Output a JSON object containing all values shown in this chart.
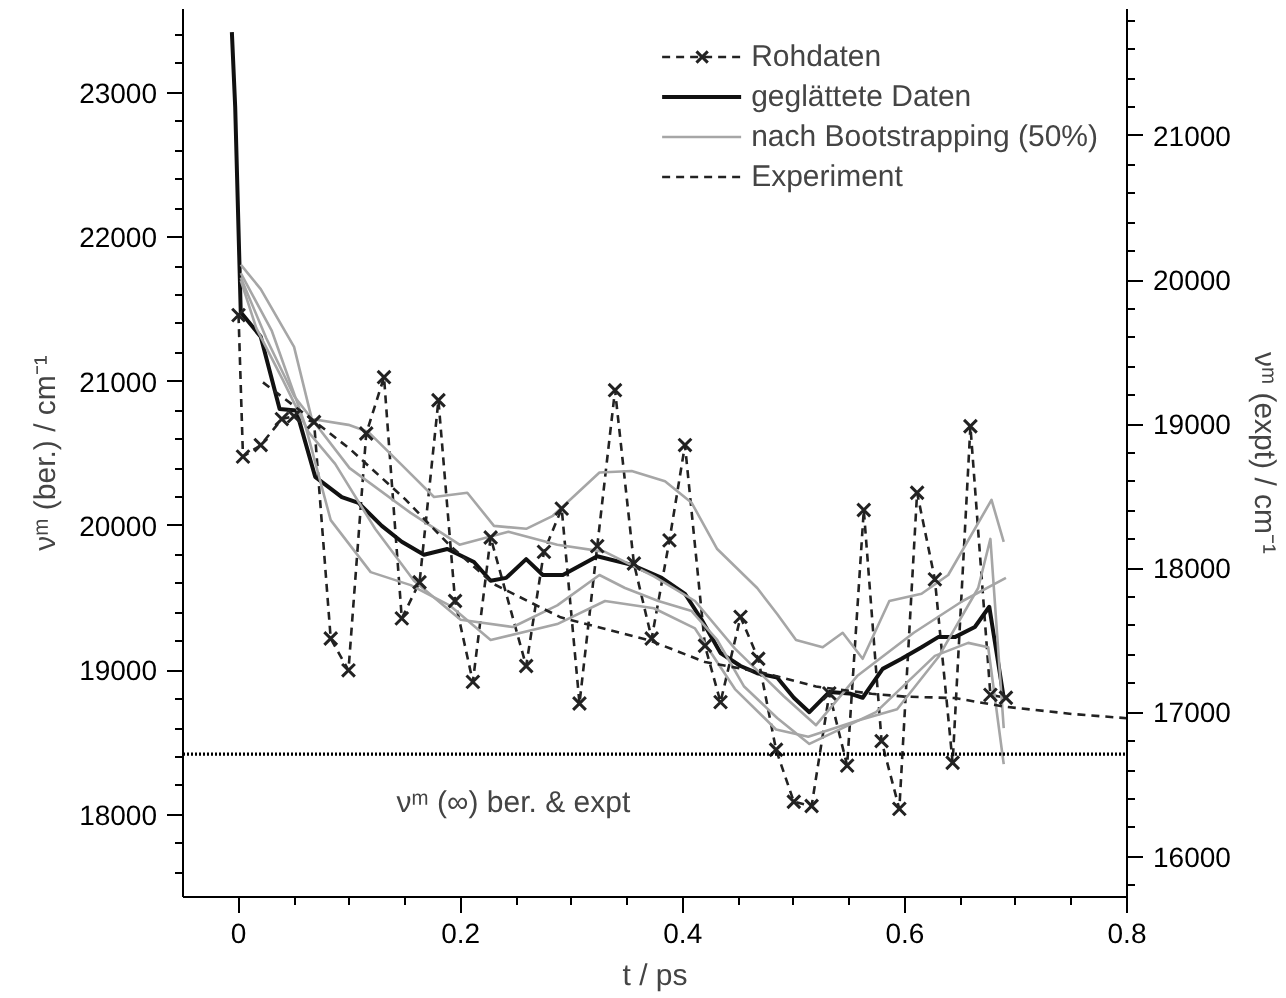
{
  "chart_data": {
    "type": "line",
    "xlabel": "t / ps",
    "ylabel": "νᵐ (ber.) / cm⁻¹",
    "y2label": "νᵐ (expt) / cm⁻¹",
    "xlim": [
      -0.05,
      0.8
    ],
    "xticks": [
      0,
      {
        "value": 0.05,
        "label": null
      },
      {
        "value": 0.1,
        "label": null
      },
      {
        "value": 0.15,
        "label": null
      },
      {
        "value": 0.2,
        "label": "0.2"
      },
      {
        "value": 0.25,
        "label": null
      },
      {
        "value": 0.3,
        "label": null
      },
      {
        "value": 0.35,
        "label": null
      },
      {
        "value": 0.4,
        "label": "0.4"
      },
      {
        "value": 0.45,
        "label": null
      },
      {
        "value": 0.5,
        "label": null
      },
      {
        "value": 0.55,
        "label": null
      },
      {
        "value": 0.6,
        "label": "0.6"
      },
      {
        "value": 0.65,
        "label": null
      },
      {
        "value": 0.7,
        "label": null
      },
      {
        "value": 0.75,
        "label": null
      },
      {
        "value": 0.8,
        "label": "0.8"
      }
    ],
    "ylim": [
      17430,
      23580
    ],
    "yticks": [
      {
        "value": 17600,
        "label": null
      },
      {
        "value": 17800,
        "label": null
      },
      18000,
      {
        "value": 18200,
        "label": null
      },
      {
        "value": 18400,
        "label": null
      },
      {
        "value": 18600,
        "label": null
      },
      {
        "value": 18800,
        "label": null
      },
      19000,
      {
        "value": 19200,
        "label": null
      },
      {
        "value": 19400,
        "label": null
      },
      {
        "value": 19600,
        "label": null
      },
      {
        "value": 19800,
        "label": null
      },
      20000,
      {
        "value": 20200,
        "label": null
      },
      {
        "value": 20400,
        "label": null
      },
      {
        "value": 20600,
        "label": null
      },
      {
        "value": 20800,
        "label": null
      },
      21000,
      {
        "value": 21200,
        "label": null
      },
      {
        "value": 21400,
        "label": null
      },
      {
        "value": 21600,
        "label": null
      },
      {
        "value": 21800,
        "label": null
      },
      22000,
      {
        "value": 22200,
        "label": null
      },
      {
        "value": 22400,
        "label": null
      },
      {
        "value": 22600,
        "label": null
      },
      {
        "value": 22800,
        "label": null
      },
      23000,
      {
        "value": 23200,
        "label": null
      },
      {
        "value": 23400,
        "label": null
      }
    ],
    "y2lim": [
      15720,
      21880
    ],
    "y2ticks": [
      {
        "value": 15800,
        "label": null
      },
      16000,
      {
        "value": 16200,
        "label": null
      },
      {
        "value": 16400,
        "label": null
      },
      {
        "value": 16600,
        "label": null
      },
      {
        "value": 16800,
        "label": null
      },
      17000,
      {
        "value": 17200,
        "label": null
      },
      {
        "value": 17400,
        "label": null
      },
      {
        "value": 17600,
        "label": null
      },
      {
        "value": 17800,
        "label": null
      },
      18000,
      {
        "value": 18200,
        "label": null
      },
      {
        "value": 18400,
        "label": null
      },
      {
        "value": 18600,
        "label": null
      },
      {
        "value": 18800,
        "label": null
      },
      19000,
      {
        "value": 19200,
        "label": null
      },
      {
        "value": 19400,
        "label": null
      },
      {
        "value": 19600,
        "label": null
      },
      {
        "value": 19800,
        "label": null
      },
      20000,
      {
        "value": 20200,
        "label": null
      },
      {
        "value": 20400,
        "label": null
      },
      {
        "value": 20600,
        "label": null
      },
      {
        "value": 20800,
        "label": null
      },
      21000,
      {
        "value": 21200,
        "label": null
      },
      {
        "value": 21400,
        "label": null
      },
      {
        "value": 21600,
        "label": null
      },
      {
        "value": 21800,
        "label": null
      }
    ],
    "grid": false,
    "legend": "top right",
    "ref_lines": [
      {
        "axis": "y",
        "value": 18420,
        "label": "νᵐ (∞) ber. & expt",
        "color": "#000000",
        "line_style": "dotted"
      }
    ],
    "series": [
      {
        "name": "Rohdaten",
        "color": "#222222",
        "line_style": "dashed",
        "marker": "cross",
        "x": [
          0,
          0.004,
          0.02,
          0.039,
          0.05,
          0.068,
          0.083,
          0.099,
          0.115,
          0.131,
          0.147,
          0.163,
          0.18,
          0.195,
          0.211,
          0.227,
          0.259,
          0.275,
          0.291,
          0.307,
          0.323,
          0.339,
          0.356,
          0.372,
          0.388,
          0.402,
          0.42,
          0.434,
          0.452,
          0.468,
          0.484,
          0.5,
          0.516,
          0.532,
          0.548,
          0.563,
          0.579,
          0.595,
          0.611,
          0.627,
          0.643,
          0.659,
          0.677,
          0.691
        ],
        "values": [
          21460,
          20480,
          20560,
          20740,
          20760,
          20720,
          19220,
          19000,
          20640,
          21030,
          19360,
          19610,
          20870,
          19480,
          18920,
          19920,
          19030,
          19820,
          20120,
          18770,
          19860,
          20940,
          19740,
          19220,
          19900,
          20560,
          19170,
          18780,
          19370,
          19080,
          18450,
          18090,
          18060,
          18840,
          18340,
          20110,
          18510,
          18040,
          20230,
          19630,
          18360,
          20690,
          18830,
          18810
        ]
      },
      {
        "name": "geglättete Daten",
        "color": "#111111",
        "line_style": "solid",
        "x": [
          -0.006,
          -0.003,
          0.002,
          0.02,
          0.037,
          0.052,
          0.069,
          0.093,
          0.108,
          0.129,
          0.147,
          0.167,
          0.188,
          0.212,
          0.227,
          0.241,
          0.259,
          0.274,
          0.292,
          0.323,
          0.354,
          0.381,
          0.402,
          0.417,
          0.434,
          0.452,
          0.467,
          0.485,
          0.5,
          0.514,
          0.532,
          0.55,
          0.562,
          0.58,
          0.597,
          0.615,
          0.63,
          0.645,
          0.663,
          0.676,
          0.689
        ],
        "values": [
          23420,
          22900,
          21480,
          21310,
          20810,
          20800,
          20340,
          20200,
          20160,
          20000,
          19890,
          19800,
          19840,
          19750,
          19620,
          19640,
          19770,
          19660,
          19660,
          19790,
          19730,
          19640,
          19530,
          19350,
          19120,
          19030,
          18980,
          18950,
          18810,
          18710,
          18850,
          18840,
          18810,
          19010,
          19080,
          19160,
          19230,
          19230,
          19300,
          19440,
          18810
        ]
      },
      {
        "name": "nach Bootstrapping (50%)",
        "color": "#a6a6a6",
        "line_style": "solid",
        "x": [
          0.002,
          0.02,
          0.05,
          0.066,
          0.099,
          0.117,
          0.146,
          0.176,
          0.206,
          0.23,
          0.259,
          0.283,
          0.325,
          0.354,
          0.384,
          0.408,
          0.431,
          0.467,
          0.485,
          0.502,
          0.526,
          0.544,
          0.562,
          0.586,
          0.615,
          0.639,
          0.678,
          0.689
        ],
        "values": [
          21810,
          21640,
          21240,
          20740,
          20700,
          20650,
          20430,
          20200,
          20230,
          20000,
          19980,
          20070,
          20370,
          20380,
          20310,
          20160,
          19840,
          19570,
          19390,
          19210,
          19160,
          19260,
          19080,
          19480,
          19530,
          19660,
          20180,
          19890
        ]
      },
      {
        "color": "#a6a6a6",
        "line_style": "solid",
        "x": [
          0.002,
          0.016,
          0.04,
          0.063,
          0.087,
          0.123,
          0.158,
          0.2,
          0.247,
          0.287,
          0.325,
          0.348,
          0.378,
          0.408,
          0.431,
          0.455,
          0.485,
          0.514,
          0.574,
          0.627,
          0.657,
          0.675,
          0.689
        ],
        "values": [
          21700,
          21370,
          21010,
          20650,
          20430,
          19980,
          19620,
          19350,
          19300,
          19450,
          19660,
          19570,
          19480,
          19410,
          19210,
          18890,
          18670,
          18490,
          18710,
          19100,
          19190,
          19160,
          18350
        ]
      },
      {
        "color": "#a6a6a6",
        "line_style": "solid",
        "x": [
          0.002,
          0.03,
          0.06,
          0.083,
          0.119,
          0.155,
          0.19,
          0.227,
          0.287,
          0.33,
          0.374,
          0.411,
          0.447,
          0.484,
          0.513,
          0.557,
          0.593,
          0.63,
          0.666,
          0.677,
          0.689
        ],
        "values": [
          21750,
          21350,
          20700,
          20040,
          19680,
          19590,
          19450,
          19210,
          19320,
          19480,
          19430,
          19290,
          18870,
          18590,
          18540,
          18650,
          18730,
          19090,
          19570,
          19910,
          18600
        ]
      },
      {
        "color": "#a6a6a6",
        "line_style": "solid",
        "x": [
          0.002,
          0.025,
          0.05,
          0.1,
          0.155,
          0.199,
          0.243,
          0.287,
          0.33,
          0.374,
          0.411,
          0.447,
          0.491,
          0.52,
          0.557,
          0.608,
          0.652,
          0.691
        ],
        "values": [
          21720,
          21300,
          20900,
          20400,
          20090,
          19870,
          19960,
          19870,
          19820,
          19650,
          19480,
          19150,
          18820,
          18620,
          18960,
          19260,
          19480,
          19640
        ]
      },
      {
        "name": "Experiment",
        "color": "#222222",
        "line_style": "dashed",
        "axis": "y2",
        "x": [
          0.022,
          0.07,
          0.1,
          0.15,
          0.19,
          0.23,
          0.29,
          0.37,
          0.42,
          0.47,
          0.52,
          0.57,
          0.6,
          0.645,
          0.69,
          0.75,
          0.8
        ],
        "values": [
          19290,
          19010,
          18830,
          18480,
          18160,
          17890,
          17660,
          17500,
          17350,
          17280,
          17180,
          17130,
          17110,
          17100,
          17040,
          16990,
          16960
        ]
      }
    ]
  }
}
